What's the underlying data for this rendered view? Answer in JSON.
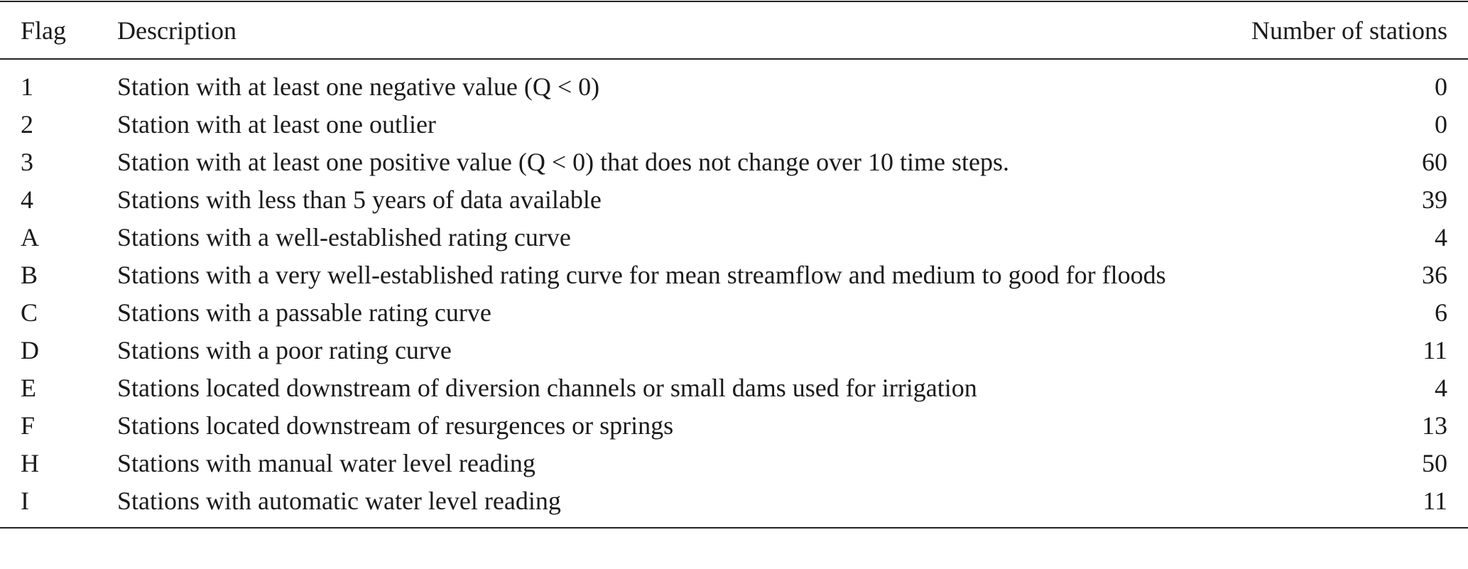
{
  "table": {
    "headers": [
      "Flag",
      "Description",
      "Number of stations"
    ],
    "rows": [
      [
        "1",
        "Station with at least one negative value (Q < 0)",
        0
      ],
      [
        "2",
        "Station with at least one outlier",
        0
      ],
      [
        "3",
        "Station with at least one positive value (Q < 0) that does not change over 10 time steps.",
        60
      ],
      [
        "4",
        "Stations with less than 5 years of data available",
        39
      ],
      [
        "A",
        "Stations with a well-established rating curve",
        4
      ],
      [
        "B",
        "Stations with a very well-established rating curve for mean streamflow and medium to good for floods",
        36
      ],
      [
        "C",
        "Stations with a passable rating curve",
        6
      ],
      [
        "D",
        "Stations with a poor rating curve",
        11
      ],
      [
        "E",
        "Stations located downstream of diversion channels or small dams used for irrigation",
        4
      ],
      [
        "F",
        "Stations located downstream of resurgences or springs",
        13
      ],
      [
        "H",
        "Stations with manual water level reading",
        50
      ],
      [
        "I",
        "Stations with automatic water level reading",
        11
      ]
    ]
  }
}
